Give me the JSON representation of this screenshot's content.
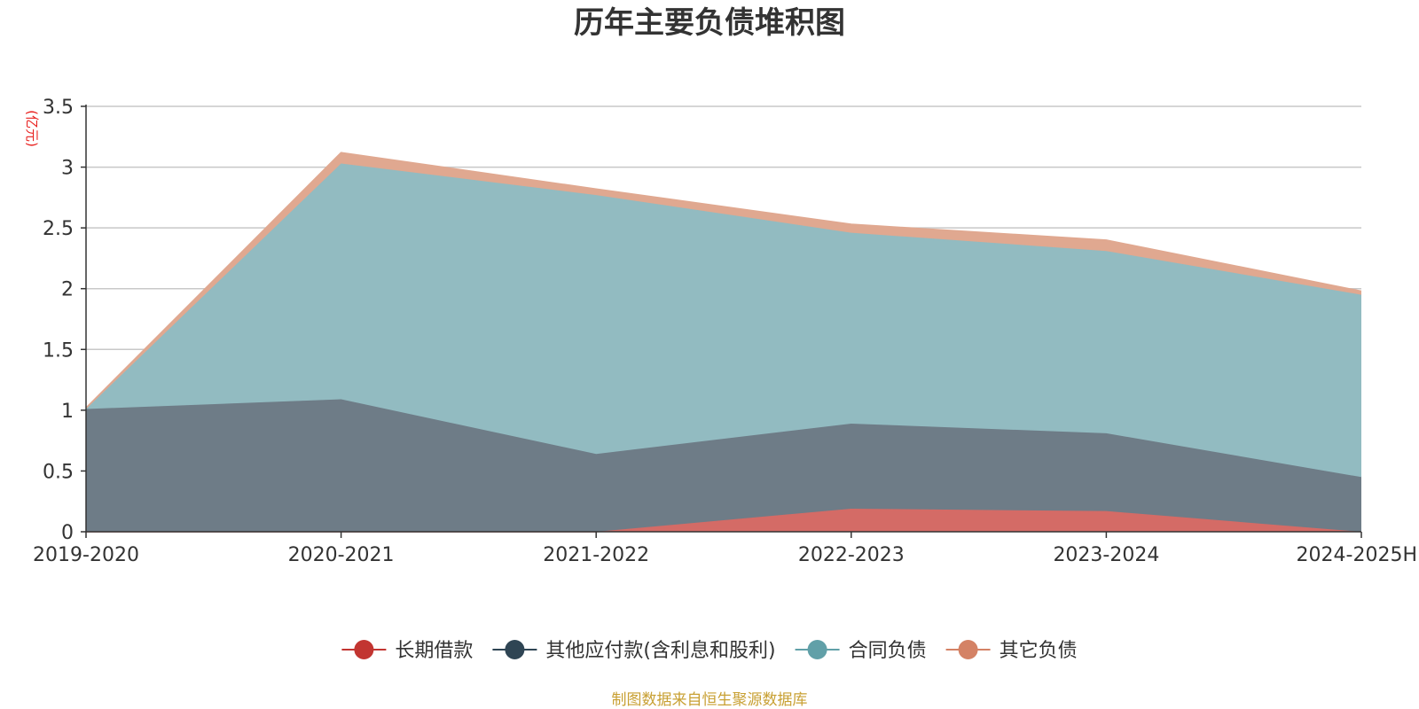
{
  "chart_data": {
    "type": "area",
    "stacked": true,
    "title": "历年主要负债堆积图",
    "y_unit": "(亿元)",
    "categories": [
      "2019-2020",
      "2020-2021",
      "2021-2022",
      "2022-2023",
      "2023-2024",
      "2024-2025H"
    ],
    "ylim": [
      0,
      3.5
    ],
    "yticks": [
      "0",
      "0.5",
      "1",
      "1.5",
      "2",
      "2.5",
      "3",
      "3.5"
    ],
    "grid": true,
    "legend_position": "bottom",
    "series": [
      {
        "name": "长期借款",
        "color": "#c23531",
        "fill": "#d46b66",
        "values": [
          0,
          0,
          0,
          0.19,
          0.17,
          0
        ]
      },
      {
        "name": "其他应付款(含利息和股利)",
        "color": "#2f4554",
        "fill": "#6e7c87",
        "values": [
          1.01,
          1.09,
          0.64,
          0.7,
          0.64,
          0.45
        ]
      },
      {
        "name": "合同负债",
        "color": "#61a0a8",
        "fill": "#92bbc1",
        "values": [
          0,
          1.94,
          2.13,
          1.57,
          1.5,
          1.5
        ]
      },
      {
        "name": "其它负债",
        "color": "#d48265",
        "fill": "#e0a890",
        "values": [
          0.01,
          0.09,
          0.05,
          0.07,
          0.09,
          0.03
        ]
      }
    ],
    "source": "制图数据来自恒生聚源数据库",
    "source_color": "#c8a033",
    "unit_color": "#e8201e"
  }
}
